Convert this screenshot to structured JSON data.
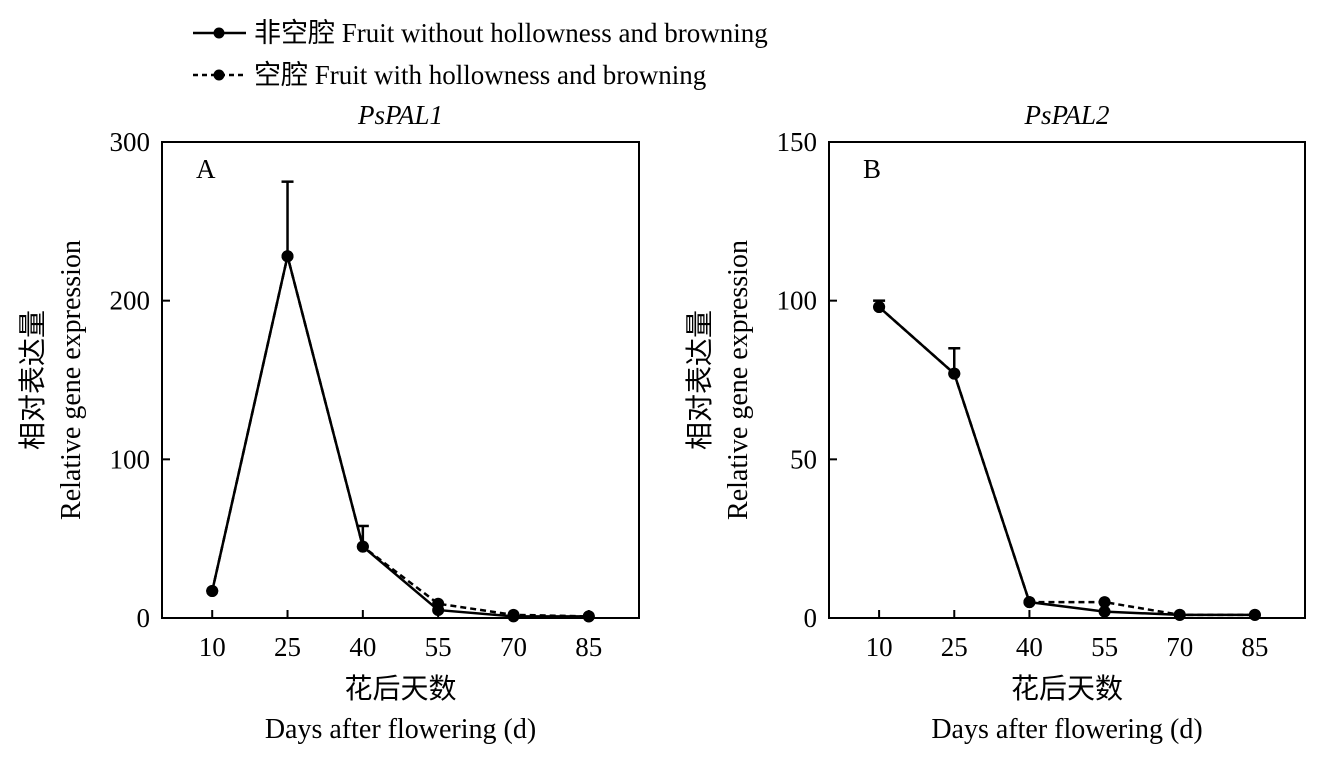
{
  "legend": {
    "items": [
      {
        "label_cn": "非空腔",
        "label_en": "Fruit without hollowness and browning",
        "style": "solid"
      },
      {
        "label_cn": "空腔",
        "label_en": "Fruit with hollowness and browning",
        "style": "dashed"
      }
    ]
  },
  "chart_data": [
    {
      "type": "line",
      "panel_label": "A",
      "title": "PsPAL1",
      "xlabel_cn": "花后天数",
      "xlabel": "Days after flowering (d)",
      "ylabel_cn": "相对表达量",
      "ylabel": "Relative gene expression",
      "x": [
        10,
        25,
        40,
        55,
        70,
        85
      ],
      "ylim": [
        0,
        300
      ],
      "yticks": [
        0,
        100,
        200,
        300
      ],
      "series": [
        {
          "name": "Fruit without hollowness and browning",
          "style": "solid",
          "values": [
            17,
            228,
            45,
            5,
            1,
            1
          ],
          "error": [
            0,
            47,
            13,
            0,
            0,
            0
          ]
        },
        {
          "name": "Fruit with hollowness and browning",
          "style": "dashed",
          "values": [
            17,
            228,
            45,
            9,
            2,
            1
          ],
          "error": [
            0,
            0,
            0,
            0,
            0,
            0
          ]
        }
      ]
    },
    {
      "type": "line",
      "panel_label": "B",
      "title": "PsPAL2",
      "xlabel_cn": "花后天数",
      "xlabel": "Days after flowering (d)",
      "ylabel_cn": "相对表达量",
      "ylabel": "Relative gene expression",
      "x": [
        10,
        25,
        40,
        55,
        70,
        85
      ],
      "ylim": [
        0,
        150
      ],
      "yticks": [
        0,
        50,
        100,
        150
      ],
      "series": [
        {
          "name": "Fruit without hollowness and browning",
          "style": "solid",
          "values": [
            98,
            77,
            5,
            2,
            1,
            1
          ],
          "error": [
            2,
            8,
            0,
            0,
            0,
            0
          ]
        },
        {
          "name": "Fruit with hollowness and browning",
          "style": "dashed",
          "values": [
            98,
            77,
            5,
            5,
            1,
            1
          ],
          "error": [
            0,
            0,
            0,
            0,
            0,
            0
          ]
        }
      ]
    }
  ]
}
